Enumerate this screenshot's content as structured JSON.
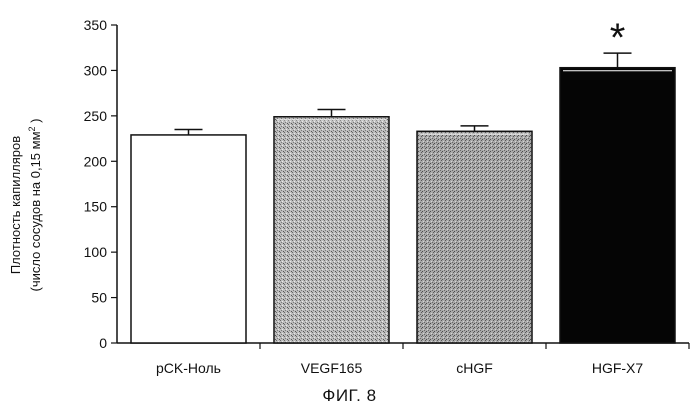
{
  "figure": {
    "caption": "ФИГ. 8"
  },
  "chart_data": {
    "type": "bar",
    "categories": [
      "pCK-Ноль",
      "VEGF165",
      "cHGF",
      "HGF-X7"
    ],
    "values": [
      229,
      249,
      233,
      303
    ],
    "errors": [
      6,
      8,
      6,
      16
    ],
    "significance": [
      "",
      "",
      "",
      "*"
    ],
    "bar_fills": [
      "white",
      "light-stipple",
      "medium-stipple",
      "black"
    ],
    "ylabel_line1": "Плотность капилляров",
    "ylabel_line2_prefix": "(число сосудов на 0,15 мм",
    "ylabel_line2_sup": "2",
    "ylabel_line2_suffix": " )",
    "yticks": [
      "0",
      "50",
      "100",
      "150",
      "200",
      "250",
      "300",
      "350"
    ],
    "ylim": [
      0,
      350
    ],
    "grid": false,
    "legend": "none"
  }
}
